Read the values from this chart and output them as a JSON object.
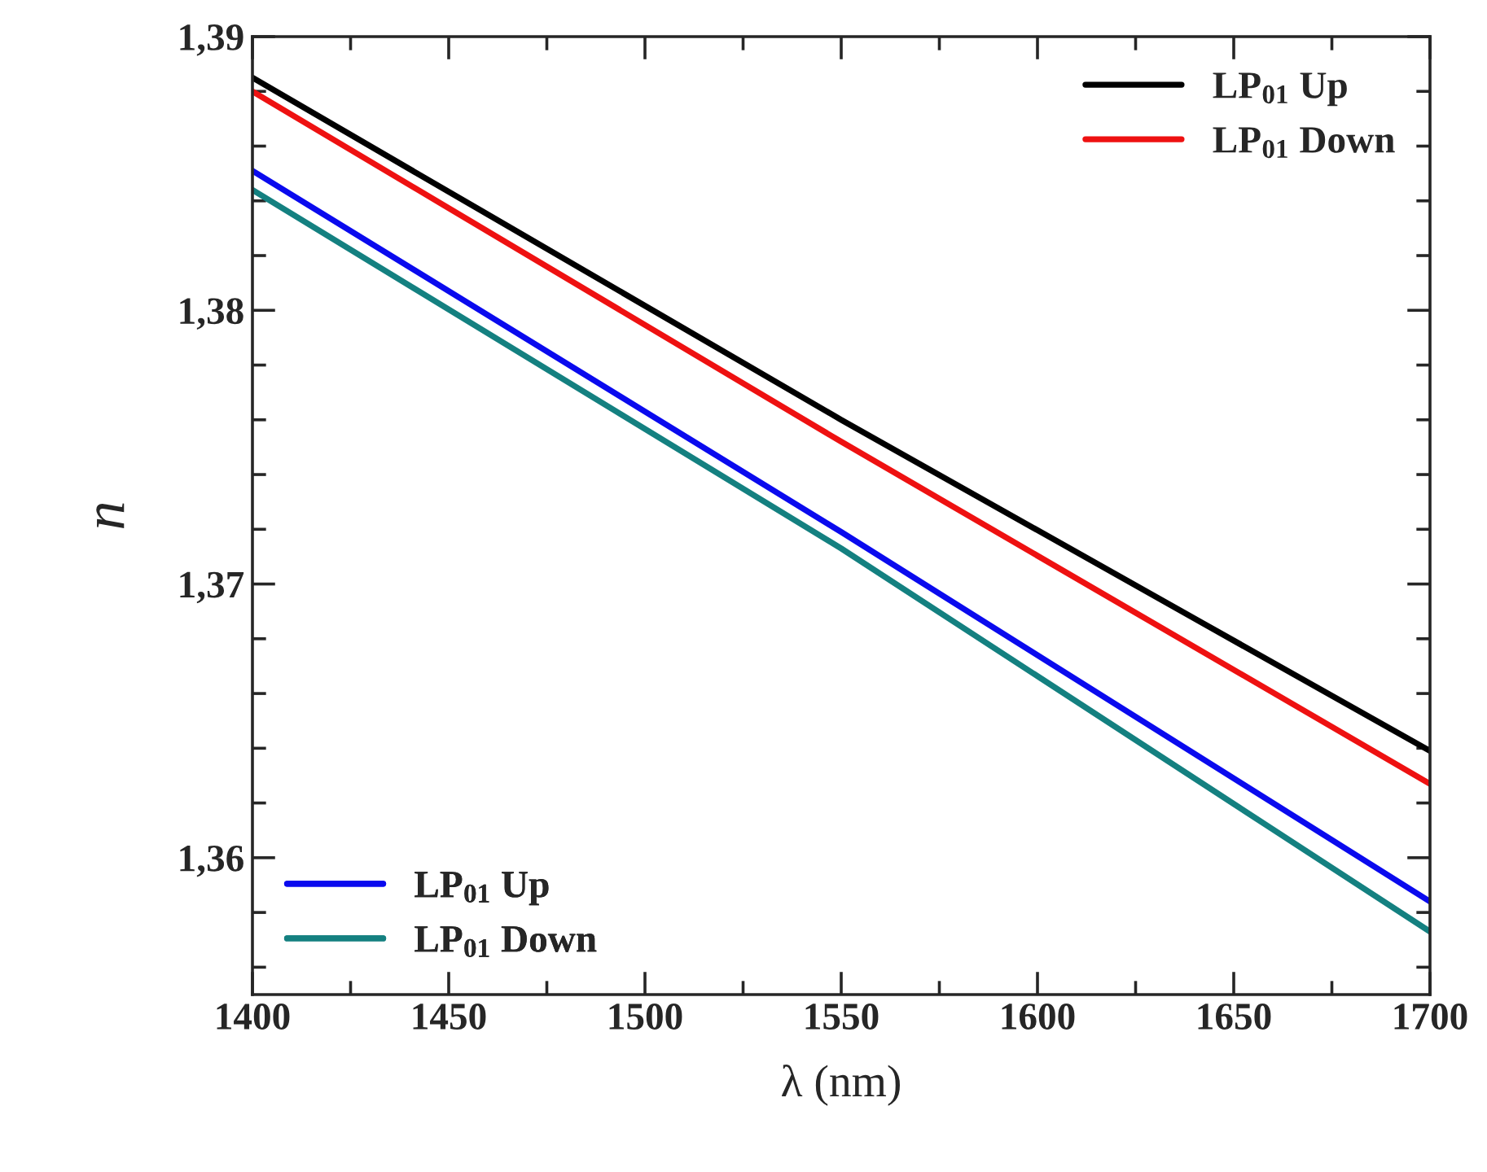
{
  "chart_data": {
    "type": "line",
    "xlabel": "λ (nm)",
    "ylabel": "n",
    "xlim": [
      1400,
      1700
    ],
    "xticks": [
      1400,
      1450,
      1500,
      1550,
      1600,
      1650,
      1700
    ],
    "ylim": [
      1.355,
      1.39
    ],
    "yticks": [
      {
        "value": 1.36,
        "label": "1,36"
      },
      {
        "value": 1.37,
        "label": "1,37"
      },
      {
        "value": 1.38,
        "label": "1,38"
      },
      {
        "value": 1.39,
        "label": "1,39"
      }
    ],
    "grid": false,
    "legend": "top right",
    "line_style": "solid",
    "marker": "none",
    "x": [
      1400,
      1550,
      1700
    ],
    "series": [
      {
        "name": "LP$_{01}$ Up",
        "color": "#000000",
        "values": [
          1.3885,
          1.376,
          1.3639
        ]
      },
      {
        "name": "LP$_{01}$ Down",
        "color": "#ee1111",
        "values": [
          1.388,
          1.3752,
          1.3627
        ]
      },
      {
        "name": "LP$_{01}$ Up",
        "color": "#0a0aee",
        "values": [
          1.3851,
          1.3719,
          1.3584
        ]
      },
      {
        "name": "LP$_{01}$ Down",
        "color": "#148080",
        "values": [
          1.3844,
          1.3713,
          1.3573
        ]
      }
    ]
  }
}
